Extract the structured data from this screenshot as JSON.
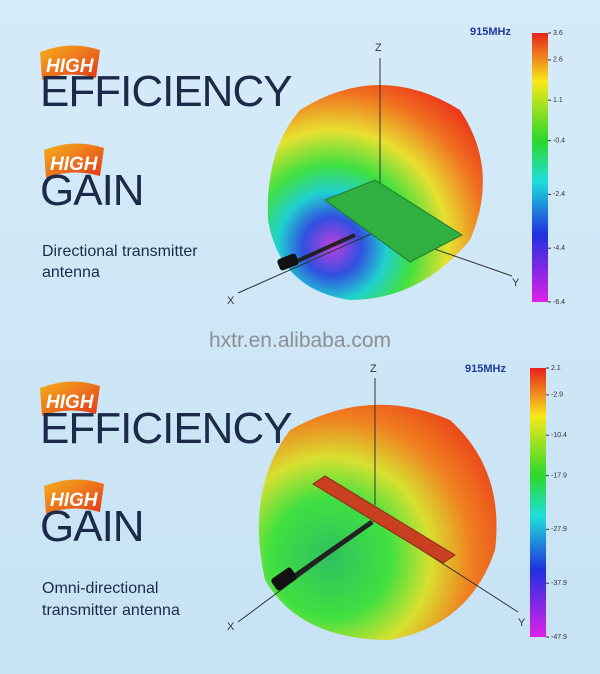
{
  "panels": [
    {
      "badge_1": "HIGH",
      "headline_1": "EFFICIENCY",
      "badge_2": "HIGH",
      "headline_2": "GAIN",
      "description": [
        "Directional transmitter",
        "antenna"
      ],
      "axes": {
        "z": "Z",
        "x": "X",
        "y": "Y"
      },
      "frequency": "915MHz",
      "colorbar": {
        "ticks": [
          3.6,
          2.6,
          1.1,
          -0.4,
          -2.4,
          -4.4,
          -6.4
        ]
      }
    },
    {
      "badge_1": "HIGH",
      "headline_1": "EFFICIENCY",
      "badge_2": "HIGH",
      "headline_2": "GAIN",
      "description": [
        "Omni-directional",
        "transmitter antenna"
      ],
      "axes": {
        "z": "Z",
        "x": "X",
        "y": "Y"
      },
      "frequency": "915MHz",
      "colorbar": {
        "ticks": [
          2.1,
          -2.9,
          -10.4,
          -17.9,
          -27.9,
          -37.9,
          -47.9
        ]
      }
    }
  ],
  "watermark": "hxtr.en.alibaba.com"
}
